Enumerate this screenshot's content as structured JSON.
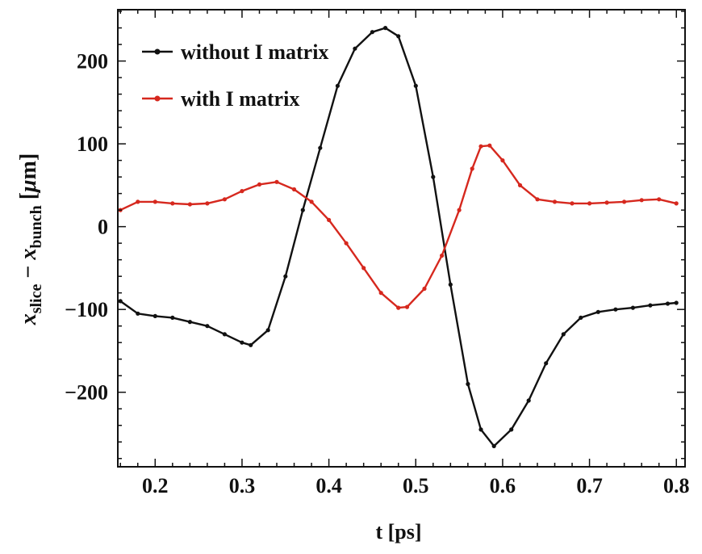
{
  "chart_data": {
    "type": "line",
    "title": "",
    "xlabel": "t [ps]",
    "ylabel": {
      "var1": "x",
      "sub1": "slice",
      "minus": " − ",
      "var2": "x",
      "sub2": "bunch",
      "bracket_open": " [",
      "mu": "μ",
      "unit": "m]"
    },
    "xlim": [
      0.157,
      0.81
    ],
    "ylim": [
      -290,
      262
    ],
    "xticks": [
      0.2,
      0.3,
      0.4,
      0.5,
      0.6,
      0.7,
      0.8
    ],
    "xtick_labels": [
      "0.2",
      "0.3",
      "0.4",
      "0.5",
      "0.6",
      "0.7",
      "0.8"
    ],
    "yticks": [
      -200,
      -100,
      0,
      100,
      200
    ],
    "ytick_labels": [
      "−200",
      "−100",
      "0",
      "100",
      "200"
    ],
    "legend_position": "top-left",
    "colors": {
      "without": "#111111",
      "with": "#d6281e"
    },
    "series": [
      {
        "name": "without I matrix",
        "key": "without",
        "x": [
          0.16,
          0.18,
          0.2,
          0.22,
          0.24,
          0.26,
          0.28,
          0.3,
          0.31,
          0.33,
          0.35,
          0.37,
          0.39,
          0.41,
          0.43,
          0.45,
          0.465,
          0.48,
          0.5,
          0.52,
          0.54,
          0.56,
          0.575,
          0.59,
          0.61,
          0.63,
          0.65,
          0.67,
          0.69,
          0.71,
          0.73,
          0.75,
          0.77,
          0.79,
          0.8
        ],
        "y": [
          -90,
          -105,
          -108,
          -110,
          -115,
          -120,
          -130,
          -140,
          -143,
          -125,
          -60,
          20,
          95,
          170,
          215,
          235,
          240,
          230,
          170,
          60,
          -70,
          -190,
          -245,
          -265,
          -245,
          -210,
          -165,
          -130,
          -110,
          -103,
          -100,
          -98,
          -95,
          -93,
          -92
        ]
      },
      {
        "name": "with I matrix",
        "key": "with",
        "x": [
          0.16,
          0.18,
          0.2,
          0.22,
          0.24,
          0.26,
          0.28,
          0.3,
          0.32,
          0.34,
          0.36,
          0.38,
          0.4,
          0.42,
          0.44,
          0.46,
          0.48,
          0.49,
          0.51,
          0.53,
          0.55,
          0.565,
          0.575,
          0.585,
          0.6,
          0.62,
          0.64,
          0.66,
          0.68,
          0.7,
          0.72,
          0.74,
          0.76,
          0.78,
          0.8
        ],
        "y": [
          20,
          30,
          30,
          28,
          27,
          28,
          33,
          43,
          51,
          54,
          45,
          30,
          8,
          -20,
          -50,
          -80,
          -98,
          -97,
          -75,
          -35,
          20,
          70,
          97,
          98,
          80,
          50,
          33,
          30,
          28,
          28,
          29,
          30,
          32,
          33,
          28
        ]
      }
    ]
  }
}
